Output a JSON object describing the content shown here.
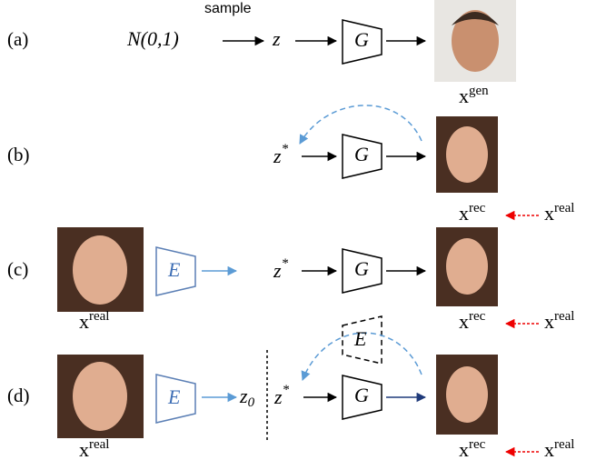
{
  "rows": [
    {
      "label": "(a)",
      "sample": "sample",
      "source": "N(0,1)",
      "latent": "z",
      "generator": "G",
      "output": {
        "base": "x",
        "sup": "gen"
      }
    },
    {
      "label": "(b)",
      "latent": {
        "base": "z",
        "sup": "*"
      },
      "generator": "G",
      "output": {
        "base": "x",
        "sup": "rec"
      },
      "target": {
        "base": "x",
        "sup": "real"
      }
    },
    {
      "label": "(c)",
      "input": {
        "base": "x",
        "sup": "real"
      },
      "encoder": "E",
      "latent": {
        "base": "z",
        "sup": "*"
      },
      "generator": "G",
      "output": {
        "base": "x",
        "sup": "rec"
      },
      "target": {
        "base": "x",
        "sup": "real"
      }
    },
    {
      "label": "(d)",
      "input": {
        "base": "x",
        "sup": "real"
      },
      "encoder": "E",
      "init": {
        "base": "z",
        "sub": "0"
      },
      "latent": {
        "base": "z",
        "sup": "*"
      },
      "generator": "G",
      "dashed_encoder": "E",
      "output": {
        "base": "x",
        "sup": "rec"
      },
      "target": {
        "base": "x",
        "sup": "real"
      }
    }
  ]
}
